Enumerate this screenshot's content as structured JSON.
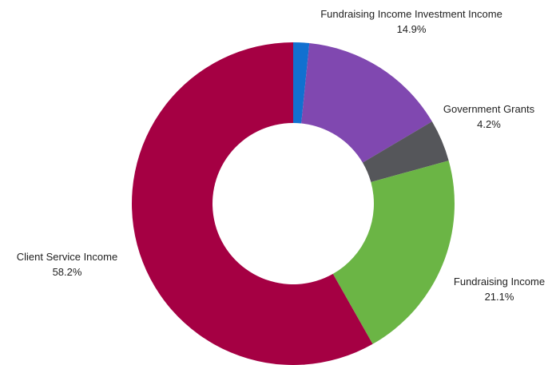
{
  "chart_data": {
    "type": "pie",
    "variant": "donut",
    "slices": [
      {
        "name": "Investment Income",
        "value": 1.6,
        "color": "#1170d0",
        "value_label": ""
      },
      {
        "name": "Fundraising Income Investment Income",
        "value": 14.9,
        "color": "#8048b0",
        "value_label": "14.9%"
      },
      {
        "name": "Government Grants",
        "value": 4.2,
        "color": "#55565a",
        "value_label": "4.2%"
      },
      {
        "name": "Fundraising Income",
        "value": 21.1,
        "color": "#6bb545",
        "value_label": "21.1%"
      },
      {
        "name": "Client Service Income",
        "value": 58.2,
        "color": "#a50043",
        "value_label": "58.2%"
      }
    ],
    "legend": "none",
    "start_angle": "top, clockwise"
  },
  "labels": {
    "fundraising_investment": {
      "name": "Fundraising Income Investment Income",
      "value": "14.9%"
    },
    "government_grants": {
      "name": "Government Grants",
      "value": "4.2%"
    },
    "fundraising_income": {
      "name": "Fundraising Income",
      "value": "21.1%"
    },
    "client_service": {
      "name": "Client Service Income",
      "value": "58.2%"
    }
  }
}
